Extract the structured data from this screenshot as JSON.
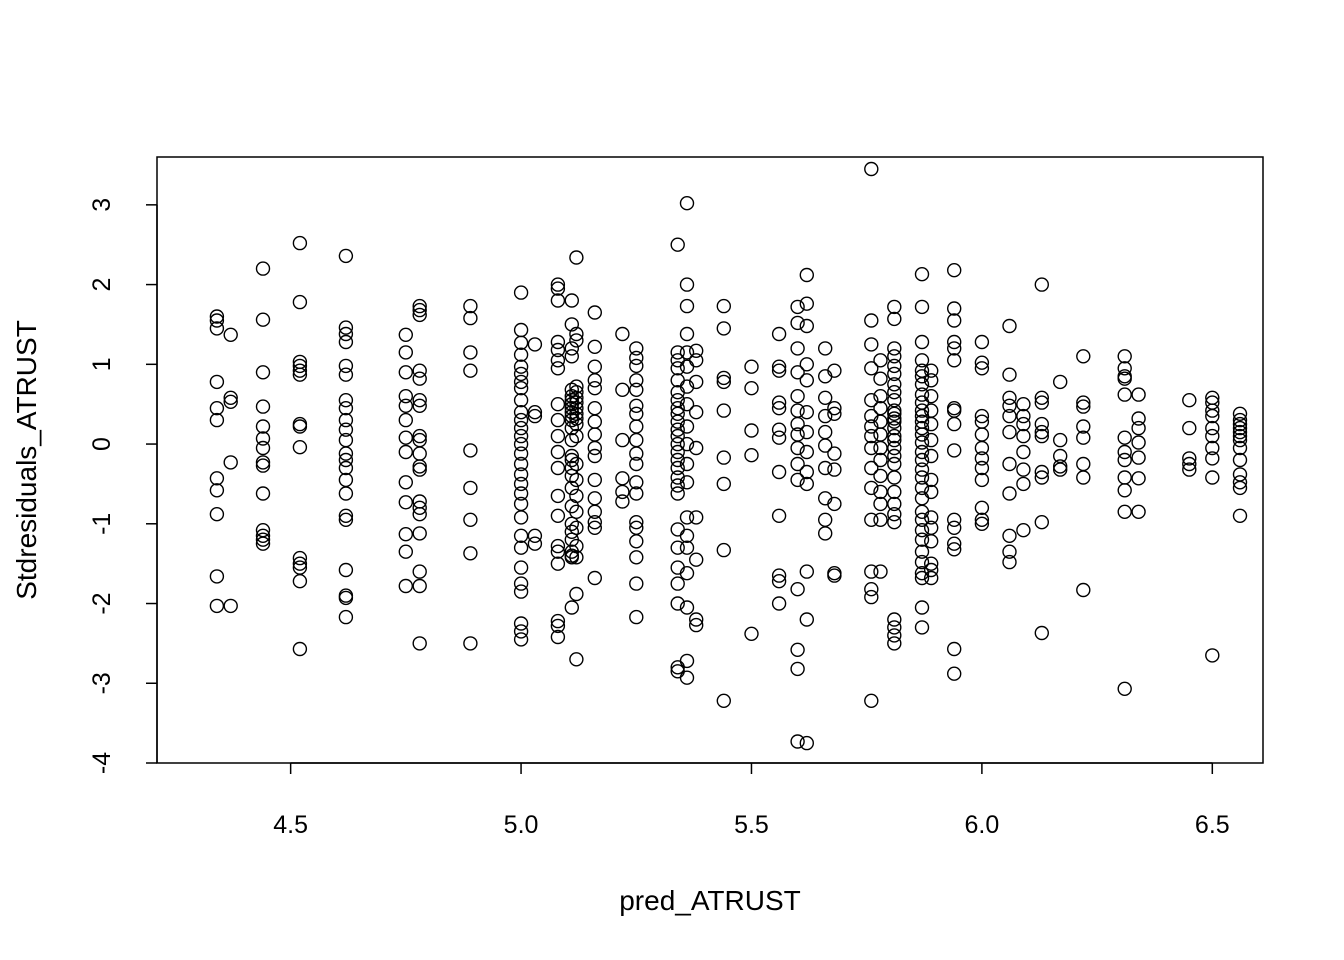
{
  "chart_data": {
    "type": "scatter",
    "title": "",
    "xlabel": "pred_ATRUST",
    "ylabel": "Stdresiduals_ATRUST",
    "xlim": [
      4.21,
      6.61
    ],
    "ylim": [
      -4.0,
      3.6
    ],
    "xticks": [
      "4.5",
      "5.0",
      "5.5",
      "6.0",
      "6.5"
    ],
    "yticks": [
      "-4",
      "-3",
      "-2",
      "-1",
      "0",
      "1",
      "2",
      "3"
    ],
    "grid": false,
    "point_style": "open-circle",
    "columns": [
      {
        "x": 4.34,
        "y": [
          1.6,
          1.55,
          1.45,
          0.78,
          0.45,
          0.3,
          -0.43,
          -0.58,
          -0.88,
          -1.66,
          -2.03
        ]
      },
      {
        "x": 4.37,
        "y": [
          1.37,
          0.58,
          0.53,
          -0.23,
          -2.03
        ]
      },
      {
        "x": 4.44,
        "y": [
          2.2,
          1.56,
          0.9,
          0.47,
          0.22,
          0.07,
          -0.05,
          -0.23,
          -0.27,
          -0.62,
          -1.08,
          -1.15,
          -1.2,
          -1.25
        ]
      },
      {
        "x": 4.52,
        "y": [
          2.52,
          1.78,
          1.03,
          0.98,
          0.92,
          0.87,
          0.25,
          0.22,
          -0.04,
          -1.43,
          -1.5,
          -1.55,
          -1.72,
          -2.57
        ]
      },
      {
        "x": 4.62,
        "y": [
          2.36,
          1.46,
          1.38,
          1.28,
          0.98,
          0.87,
          0.55,
          0.45,
          0.3,
          0.18,
          0.05,
          -0.12,
          -0.2,
          -0.3,
          -0.45,
          -0.62,
          -0.9,
          -0.95,
          -1.58,
          -1.9,
          -1.93,
          -2.17
        ]
      },
      {
        "x": 4.75,
        "y": [
          1.37,
          1.15,
          0.9,
          0.6,
          0.48,
          0.3,
          0.08,
          -0.1,
          -0.48,
          -0.73,
          -1.13,
          -1.35,
          -1.78
        ]
      },
      {
        "x": 4.78,
        "y": [
          1.73,
          1.68,
          1.62,
          0.92,
          0.82,
          0.55,
          0.48,
          0.1,
          0.05,
          -0.12,
          -0.28,
          -0.32,
          -0.72,
          -0.8,
          -0.88,
          -1.12,
          -1.6,
          -1.78,
          -2.5
        ]
      },
      {
        "x": 4.89,
        "y": [
          1.73,
          1.58,
          1.15,
          0.92,
          -0.08,
          -0.55,
          -0.95,
          -1.37,
          -2.5
        ]
      },
      {
        "x": 5.0,
        "y": [
          1.9,
          1.43,
          1.27,
          1.12,
          0.97,
          0.88,
          0.78,
          0.7,
          0.55,
          0.4,
          0.3,
          0.2,
          0.1,
          0.0,
          -0.12,
          -0.25,
          -0.38,
          -0.5,
          -0.62,
          -0.75,
          -0.92,
          -1.15,
          -1.3,
          -1.55,
          -1.75,
          -1.85,
          -2.25,
          -2.35,
          -2.45
        ]
      },
      {
        "x": 5.03,
        "y": [
          1.25,
          0.4,
          0.35,
          -1.15,
          -1.25
        ]
      },
      {
        "x": 5.08,
        "y": [
          2.0,
          1.95,
          1.8,
          1.28,
          1.18,
          1.05,
          0.95,
          0.5,
          0.3,
          0.1,
          -0.1,
          -0.3,
          -0.65,
          -0.9,
          -1.28,
          -1.35,
          -1.5,
          -2.22,
          -2.28,
          -2.42
        ]
      },
      {
        "x": 5.11,
        "y": [
          1.8,
          1.5,
          1.2,
          1.1,
          0.68,
          0.6,
          0.55,
          0.5,
          0.45,
          0.4,
          0.35,
          0.3,
          0.2,
          0.05,
          -0.15,
          -0.2,
          -0.3,
          -0.4,
          -0.55,
          -0.78,
          -1.0,
          -1.1,
          -1.2,
          -1.35,
          -1.4,
          -1.42,
          -2.05
        ]
      },
      {
        "x": 5.12,
        "y": [
          2.34,
          1.38,
          1.3,
          0.72,
          0.65,
          0.58,
          0.52,
          0.45,
          0.38,
          0.32,
          0.25,
          0.1,
          -0.25,
          -0.45,
          -0.65,
          -0.85,
          -1.05,
          -1.28,
          -1.42,
          -1.88,
          -2.7
        ]
      },
      {
        "x": 5.16,
        "y": [
          1.65,
          1.22,
          0.97,
          0.8,
          0.7,
          0.45,
          0.28,
          0.12,
          -0.05,
          -0.15,
          -0.45,
          -0.68,
          -0.85,
          -0.98,
          -1.05,
          -1.68
        ]
      },
      {
        "x": 5.22,
        "y": [
          1.38,
          0.68,
          0.05,
          -0.43,
          -0.6,
          -0.72
        ]
      },
      {
        "x": 5.25,
        "y": [
          1.2,
          1.08,
          0.98,
          0.8,
          0.68,
          0.48,
          0.38,
          0.22,
          0.05,
          -0.12,
          -0.25,
          -0.48,
          -0.62,
          -0.98,
          -1.05,
          -1.22,
          -1.42,
          -1.75,
          -2.17
        ]
      },
      {
        "x": 5.34,
        "y": [
          2.5,
          1.15,
          1.05,
          0.95,
          0.8,
          0.65,
          0.55,
          0.45,
          0.38,
          0.28,
          0.18,
          0.1,
          0.0,
          -0.1,
          -0.2,
          -0.3,
          -0.42,
          -0.52,
          -0.62,
          -1.07,
          -1.3,
          -1.55,
          -1.75,
          -2.0,
          -2.8,
          -2.85
        ]
      },
      {
        "x": 5.36,
        "y": [
          3.02,
          2.0,
          1.73,
          1.38,
          1.15,
          0.97,
          0.72,
          0.5,
          0.22,
          0.0,
          -0.25,
          -0.48,
          -0.92,
          -1.15,
          -1.3,
          -1.62,
          -2.05,
          -2.72,
          -2.93
        ]
      },
      {
        "x": 5.38,
        "y": [
          1.17,
          1.05,
          0.78,
          0.4,
          -0.05,
          -0.92,
          -1.45,
          -2.2,
          -2.27
        ]
      },
      {
        "x": 5.44,
        "y": [
          1.73,
          1.45,
          0.83,
          0.78,
          0.42,
          -0.17,
          -0.5,
          -1.33,
          -3.22
        ]
      },
      {
        "x": 5.5,
        "y": [
          0.97,
          0.7,
          0.17,
          -0.14,
          -2.38
        ]
      },
      {
        "x": 5.56,
        "y": [
          1.38,
          0.97,
          0.92,
          0.52,
          0.45,
          0.18,
          0.08,
          -0.35,
          -0.9,
          -1.65,
          -1.72,
          -2.0
        ]
      },
      {
        "x": 5.6,
        "y": [
          1.72,
          1.52,
          1.2,
          0.9,
          0.6,
          0.42,
          0.25,
          0.12,
          -0.05,
          -0.25,
          -0.45,
          -1.82,
          -2.58,
          -2.82,
          -3.73
        ]
      },
      {
        "x": 5.62,
        "y": [
          2.12,
          1.76,
          1.48,
          1.0,
          0.8,
          0.4,
          0.15,
          -0.1,
          -0.35,
          -0.5,
          -1.6,
          -2.2,
          -3.75
        ]
      },
      {
        "x": 5.66,
        "y": [
          1.2,
          0.85,
          0.58,
          0.35,
          0.15,
          -0.02,
          -0.3,
          -0.68,
          -0.95,
          -1.12
        ]
      },
      {
        "x": 5.68,
        "y": [
          0.92,
          0.45,
          0.38,
          -0.12,
          -0.32,
          -0.75,
          -1.62,
          -1.65
        ]
      },
      {
        "x": 5.76,
        "y": [
          3.45,
          1.55,
          1.25,
          0.95,
          0.55,
          0.35,
          0.22,
          0.1,
          -0.05,
          -0.3,
          -0.55,
          -0.95,
          -1.6,
          -1.82,
          -1.92,
          -3.22
        ]
      },
      {
        "x": 5.78,
        "y": [
          1.05,
          0.82,
          0.6,
          0.45,
          0.28,
          0.12,
          -0.05,
          -0.2,
          -0.4,
          -0.6,
          -0.75,
          -0.95,
          -1.6
        ]
      },
      {
        "x": 5.81,
        "y": [
          1.72,
          1.57,
          1.2,
          1.1,
          0.98,
          0.88,
          0.75,
          0.65,
          0.55,
          0.42,
          0.38,
          0.32,
          0.28,
          0.2,
          0.1,
          0.05,
          -0.05,
          -0.15,
          -0.25,
          -0.42,
          -0.6,
          -0.75,
          -0.88,
          -0.98,
          -2.2,
          -2.3,
          -2.4,
          -2.5
        ]
      },
      {
        "x": 5.87,
        "y": [
          2.13,
          1.72,
          1.28,
          1.05,
          0.92,
          0.85,
          0.75,
          0.62,
          0.52,
          0.42,
          0.35,
          0.28,
          0.2,
          0.12,
          0.02,
          -0.1,
          -0.2,
          -0.32,
          -0.42,
          -0.55,
          -0.68,
          -0.85,
          -0.95,
          -1.08,
          -1.2,
          -1.35,
          -1.48,
          -1.62,
          -1.68,
          -2.05,
          -2.3
        ]
      },
      {
        "x": 5.89,
        "y": [
          0.92,
          0.8,
          0.6,
          0.42,
          0.25,
          0.05,
          -0.15,
          -0.45,
          -0.6,
          -0.92,
          -1.05,
          -1.22,
          -1.5,
          -1.58,
          -1.68
        ]
      },
      {
        "x": 5.94,
        "y": [
          2.18,
          1.7,
          1.55,
          1.28,
          1.2,
          1.05,
          0.45,
          0.42,
          0.25,
          -0.08,
          -0.95,
          -1.05,
          -1.25,
          -1.32,
          -2.57,
          -2.88
        ]
      },
      {
        "x": 6.0,
        "y": [
          1.28,
          1.02,
          0.95,
          0.35,
          0.28,
          0.12,
          -0.05,
          -0.18,
          -0.3,
          -0.45,
          -0.8,
          -0.95,
          -1.0
        ]
      },
      {
        "x": 6.06,
        "y": [
          1.48,
          0.87,
          0.58,
          0.48,
          0.35,
          0.15,
          -0.25,
          -0.62,
          -1.15,
          -1.35,
          -1.48
        ]
      },
      {
        "x": 6.09,
        "y": [
          0.5,
          0.35,
          0.25,
          0.1,
          -0.1,
          -0.32,
          -0.5,
          -1.08
        ]
      },
      {
        "x": 6.13,
        "y": [
          2.0,
          0.58,
          0.52,
          0.25,
          0.15,
          0.1,
          -0.35,
          -0.42,
          -0.98,
          -2.37
        ]
      },
      {
        "x": 6.17,
        "y": [
          0.78,
          0.05,
          -0.15,
          -0.28,
          -0.32
        ]
      },
      {
        "x": 6.22,
        "y": [
          1.1,
          0.52,
          0.47,
          0.22,
          0.08,
          -0.25,
          -0.42,
          -1.83
        ]
      },
      {
        "x": 6.31,
        "y": [
          1.1,
          0.95,
          0.85,
          0.82,
          0.62,
          0.08,
          -0.1,
          -0.2,
          -0.42,
          -0.58,
          -0.85,
          -3.07
        ]
      },
      {
        "x": 6.34,
        "y": [
          0.62,
          0.32,
          0.2,
          0.02,
          -0.17,
          -0.43,
          -0.85
        ]
      },
      {
        "x": 6.45,
        "y": [
          0.55,
          0.2,
          -0.18,
          -0.25,
          -0.32
        ]
      },
      {
        "x": 6.5,
        "y": [
          0.58,
          0.52,
          0.42,
          0.35,
          0.2,
          0.1,
          -0.05,
          -0.18,
          -0.42,
          -2.65
        ]
      },
      {
        "x": 6.56,
        "y": [
          0.38,
          0.3,
          0.25,
          0.2,
          0.15,
          0.1,
          0.05,
          -0.05,
          -0.2,
          -0.38,
          -0.48,
          -0.55,
          -0.9
        ]
      }
    ]
  }
}
